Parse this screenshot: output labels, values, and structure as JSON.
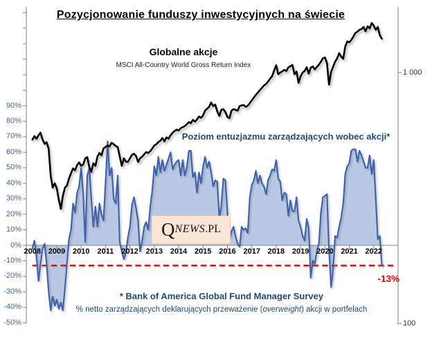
{
  "title": "Pozycjonowanie funduszy inwestycyjnych na świecie",
  "msci_block": {
    "title": "Globalne  akcje",
    "subtitle": "MSCI All-Country World Gross Return Index"
  },
  "fms_block": {
    "label": "Poziom entuzjazmu zarządzających wobec akcji*"
  },
  "watermark": {
    "q": "Q",
    "news": "NEWS",
    "pl": ".PL"
  },
  "footnote": {
    "line1": "* Bank of America Global Fund Manager Survey",
    "line2_pre": "% netto zarządzających deklarujących przeważenie (",
    "line2_italic": "overweight",
    "line2_post": ")  akcji w portfelach"
  },
  "annotation": {
    "last_value_label": "-13%"
  },
  "colors": {
    "msci_line": "#000000",
    "fms_line": "#3F63A8",
    "fms_fill": "#B9C9E5",
    "axis": "#808080",
    "reference_line": "#FF0000",
    "blue_text": "#1F497D",
    "axis_label_blue": "#46649B",
    "watermark_bg": "#FBE5D6"
  },
  "chart_data": {
    "type": "line+area",
    "title": "Pozycjonowanie funduszy inwestycyjnych na świecie",
    "x_unit": "month",
    "x_start": "2008-01",
    "x_end": "2022-05",
    "grid": false,
    "legend": "none",
    "x_tick_years": [
      "2008",
      "2009",
      "2010",
      "2011",
      "2012",
      "2013",
      "2014",
      "2015",
      "2016",
      "2017",
      "2018",
      "2019",
      "2020",
      "2021",
      "2022"
    ],
    "left_axis": {
      "type": "linear",
      "unit": "%",
      "min": -50,
      "max": 154,
      "tick_step": 10,
      "labeled_ticks": [
        90,
        80,
        70,
        60,
        50,
        40,
        30,
        20,
        10,
        0,
        -10,
        -20,
        -30,
        -40,
        -50
      ],
      "labels": [
        "90%",
        "80%",
        "70%",
        "60%",
        "50%",
        "40%",
        "30%",
        "20%",
        "10%",
        "0%",
        "-10%",
        "-20%",
        "-30%",
        "-40%",
        "-50%"
      ]
    },
    "right_axis": {
      "type": "log",
      "ticks": [
        {
          "label": "1 000",
          "value": 1000
        },
        {
          "label": "100",
          "value": 100
        }
      ]
    },
    "reference_line": {
      "axis": "left",
      "value": -13,
      "label": "-13%",
      "style": "dashed",
      "color": "#FF0000"
    },
    "series": [
      {
        "name": "Globalne akcje — MSCI All-Country World Gross Return Index",
        "type": "line",
        "axis": "right",
        "color": "#000000",
        "values": [
          540,
          558,
          545,
          562,
          576,
          540,
          520,
          528,
          497,
          388,
          348,
          362,
          346,
          310,
          286,
          322,
          348,
          354,
          378,
          397,
          415,
          408,
          428,
          438,
          425,
          430,
          455,
          460,
          420,
          402,
          435,
          425,
          462,
          478,
          468,
          498,
          505,
          512,
          508,
          525,
          518,
          510,
          505,
          462,
          425,
          455,
          442,
          440,
          455,
          470,
          475,
          465,
          440,
          455,
          462,
          472,
          482,
          478,
          486,
          498,
          512,
          518,
          528,
          535,
          548,
          532,
          552,
          545,
          562,
          575,
          585,
          592,
          588,
          600,
          606,
          612,
          622,
          635,
          628,
          648,
          638,
          650,
          668,
          660,
          675,
          705,
          718,
          730,
          760,
          735,
          745,
          700,
          672,
          710,
          715,
          695,
          665,
          658,
          705,
          715,
          710,
          705,
          735,
          740,
          742,
          730,
          738,
          755,
          775,
          795,
          815,
          832,
          852,
          870,
          888,
          900,
          920,
          945,
          968,
          1020,
          1070,
          985,
          1000,
          1010,
          1025,
          1015,
          1048,
          1060,
          1072,
          985,
          1010,
          910,
          965,
          1000,
          1015,
          1050,
          990,
          1045,
          1058,
          1030,
          1052,
          1075,
          1105,
          1140,
          1148,
          1090,
          895,
          1005,
          1055,
          1105,
          1140,
          1195,
          1158,
          1135,
          1270,
          1330,
          1320,
          1350,
          1390,
          1440,
          1455,
          1480,
          1490,
          1520,
          1460,
          1530,
          1500,
          1576,
          1540,
          1480,
          1520,
          1410,
          1365
        ]
      },
      {
        "name": "Poziom entuzjazmu zarządzających wobec akcji (BofA FMS, % netto przeważających akcje)",
        "type": "area",
        "axis": "left",
        "color": "#3F63A8",
        "fill": "#B9C9E5",
        "values": [
          -2,
          3,
          -8,
          -23,
          -12,
          -2,
          1,
          -12,
          -30,
          -42,
          -33,
          -39,
          -35,
          -41,
          -37,
          -42,
          -28,
          -12,
          4,
          10,
          27,
          21,
          34,
          38,
          50,
          33,
          2,
          45,
          50,
          30,
          12,
          25,
          12,
          27,
          20,
          16,
          40,
          67,
          45,
          50,
          30,
          27,
          45,
          2,
          -4,
          -9,
          -5,
          5,
          12,
          26,
          31,
          24,
          16,
          -4,
          3,
          12,
          15,
          10,
          25,
          35,
          51,
          45,
          57,
          47,
          55,
          48,
          52,
          56,
          60,
          49,
          52,
          54,
          55,
          45,
          55,
          45,
          50,
          61,
          61,
          44,
          47,
          34,
          47,
          40,
          51,
          57,
          50,
          54,
          47,
          38,
          42,
          41,
          17,
          26,
          43,
          42,
          21,
          5,
          9,
          12,
          6,
          1,
          -1,
          12,
          10,
          11,
          8,
          31,
          39,
          42,
          48,
          40,
          45,
          40,
          38,
          33,
          42,
          45,
          49,
          48,
          55,
          43,
          41,
          29,
          34,
          33,
          19,
          29,
          22,
          22,
          31,
          16,
          12,
          6,
          3,
          17,
          11,
          -21,
          -10,
          -12,
          -4,
          1,
          21,
          31,
          32,
          33,
          -2,
          -27,
          -16,
          6,
          5,
          12,
          18,
          27,
          46,
          51,
          53,
          61,
          62,
          62,
          54,
          61,
          58,
          54,
          50,
          50,
          58,
          46,
          55,
          31,
          4,
          6,
          -13
        ]
      }
    ]
  }
}
